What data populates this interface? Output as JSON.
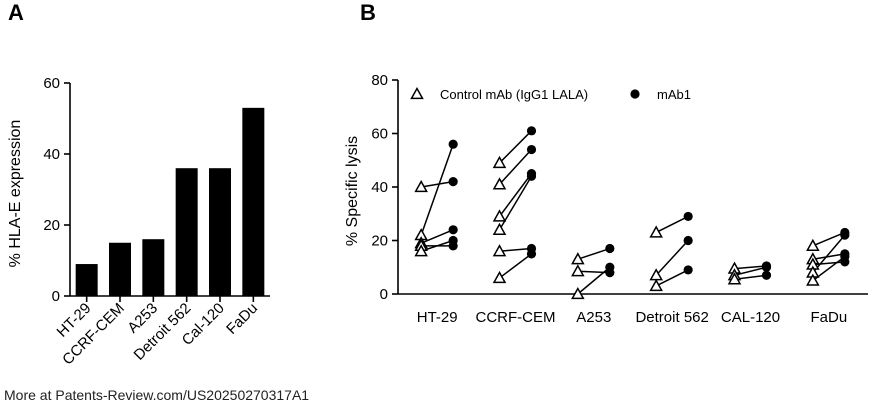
{
  "footer": "More at Patents-Review.com/US20250270317A1",
  "chart_data": [
    {
      "panel": "A",
      "type": "bar",
      "categories": [
        "HT-29",
        "CCRF-CEM",
        "A253",
        "Detroit 562",
        "Cal-120",
        "FaDu"
      ],
      "values": [
        9,
        15,
        16,
        36,
        36,
        53
      ],
      "ylabel": "% HLA-E expression",
      "xlabel": "",
      "ylim": [
        0,
        60
      ],
      "yticks": [
        0,
        20,
        40,
        60
      ],
      "grid": false,
      "colors": {
        "bar": "#000000"
      }
    },
    {
      "panel": "B",
      "type": "scatter",
      "categories": [
        "HT-29",
        "CCRF-CEM",
        "A253",
        "Detroit 562",
        "CAL-120",
        "FaDu"
      ],
      "ylabel": "% Specific lysis",
      "xlabel": "",
      "ylim": [
        0,
        80
      ],
      "yticks": [
        0,
        20,
        40,
        60,
        80
      ],
      "grid": false,
      "legend_position": "top",
      "series": [
        {
          "name": "Control mAb (IgG1 LALA)",
          "marker": "open-triangle"
        },
        {
          "name": "mAb1",
          "marker": "filled-circle"
        }
      ],
      "pairs": [
        {
          "category": "HT-29",
          "values": [
            [
              40,
              42
            ],
            [
              22,
              56
            ],
            [
              19,
              24
            ],
            [
              18,
              18
            ],
            [
              16,
              20
            ]
          ]
        },
        {
          "category": "CCRF-CEM",
          "values": [
            [
              49,
              61
            ],
            [
              41,
              54
            ],
            [
              29,
              45
            ],
            [
              24,
              44
            ],
            [
              16,
              17
            ],
            [
              6,
              15
            ]
          ]
        },
        {
          "category": "A253",
          "values": [
            [
              13,
              17
            ],
            [
              8.5,
              8
            ],
            [
              0,
              10
            ]
          ]
        },
        {
          "category": "Detroit 562",
          "values": [
            [
              23,
              29
            ],
            [
              7,
              20
            ],
            [
              3,
              9
            ]
          ]
        },
        {
          "category": "CAL-120",
          "values": [
            [
              9.5,
              10.5
            ],
            [
              7,
              10
            ],
            [
              5.5,
              7
            ]
          ]
        },
        {
          "category": "FaDu",
          "values": [
            [
              18,
              23
            ],
            [
              13,
              15
            ],
            [
              11,
              12
            ],
            [
              8,
              22
            ],
            [
              5,
              14
            ]
          ]
        }
      ]
    }
  ]
}
